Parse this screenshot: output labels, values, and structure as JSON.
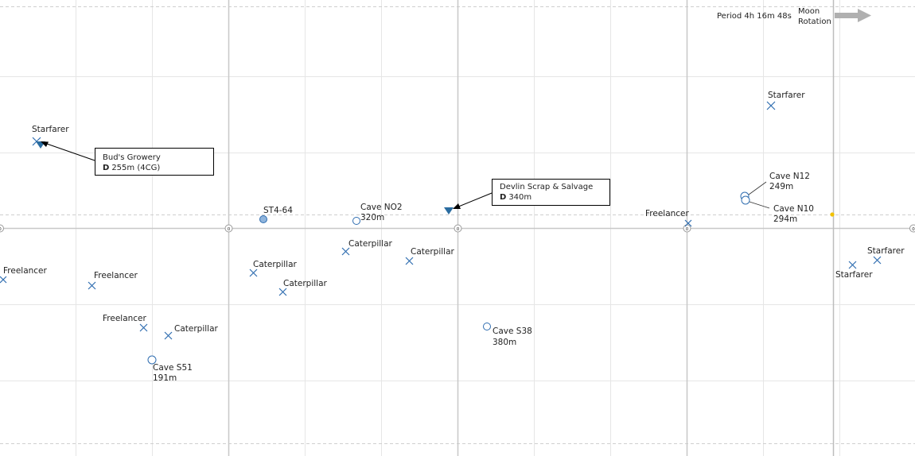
{
  "header": {
    "period_label": "Period 4h 16m 48s",
    "rotation_label_line1": "Moon",
    "rotation_label_line2": "Rotation"
  },
  "colors": {
    "grid_major": "#c8c8c8",
    "grid_minor": "#e6e6e6",
    "marker_blue": "#2f6db0",
    "outpost_blue": "#2a6ca0",
    "arrow_gray": "#b0b0b0",
    "sun_yellow": "#f2c200"
  },
  "pois": {
    "starfarer_1": "Starfarer",
    "starfarer_2": "Starfarer",
    "starfarer_3": "Starfarer",
    "starfarer_4": "Starfarer",
    "freelancer_1": "Freelancer",
    "freelancer_2": "Freelancer",
    "freelancer_3": "Freelancer",
    "freelancer_4": "Freelancer",
    "caterpillar_1": "Caterpillar",
    "caterpillar_2": "Caterpillar",
    "caterpillar_3": "Caterpillar",
    "caterpillar_4": "Caterpillar",
    "caterpillar_5": "Caterpillar",
    "st4_64": "ST4-64"
  },
  "caves": {
    "no2": {
      "name": "Cave NO2",
      "dist": "320m"
    },
    "n12": {
      "name": "Cave N12",
      "dist": "249m"
    },
    "n10": {
      "name": "Cave N10",
      "dist": "294m"
    },
    "s38": {
      "name": "Cave S38",
      "dist": "380m"
    },
    "s51": {
      "name": "Cave S51",
      "dist": "191m"
    }
  },
  "outposts": {
    "buds": {
      "name": "Bud's Growery",
      "dist_prefix": "D",
      "dist": "255m (4CG)"
    },
    "devlin": {
      "name": "Devlin Scrap & Salvage",
      "dist_prefix": "D",
      "dist": "340m"
    }
  },
  "axis_ticks": [
    "0",
    "0",
    "0",
    "0",
    "0"
  ]
}
